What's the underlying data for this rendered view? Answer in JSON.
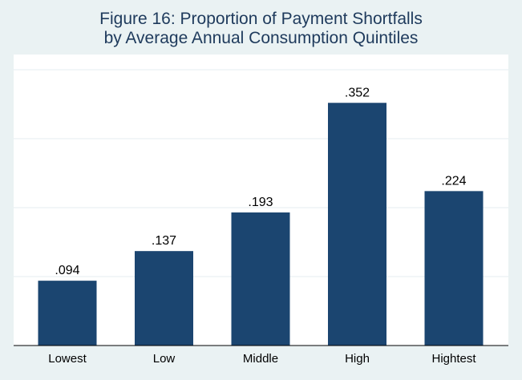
{
  "chart_data": {
    "type": "bar",
    "title_lines": [
      "Figure 16: Proportion of Payment Shortfalls",
      "by Average Annual Consumption Quintiles"
    ],
    "categories": [
      "Lowest",
      "Low",
      "Middle",
      "High",
      "Hightest"
    ],
    "values": [
      0.094,
      0.137,
      0.193,
      0.352,
      0.224
    ],
    "data_labels": [
      ".094",
      ".137",
      ".193",
      ".352",
      ".224"
    ],
    "ylim": [
      0,
      0.4
    ],
    "grid": true,
    "bar_color": "#1b4570",
    "background_color": "#eaf2f3",
    "plot_background_color": "#ffffff"
  }
}
